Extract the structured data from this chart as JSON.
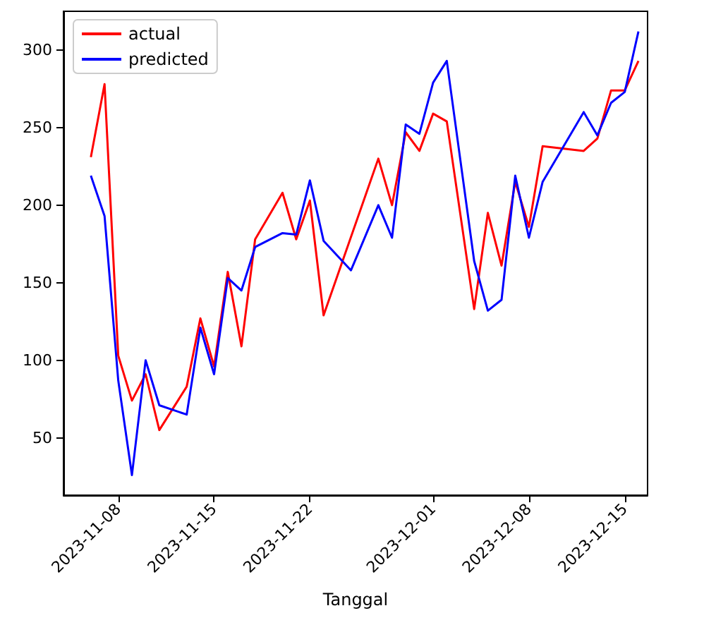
{
  "chart_data": {
    "type": "line",
    "xlabel": "Tanggal",
    "legend": "top left",
    "grid": false,
    "marker": "none",
    "line_style": "solid",
    "xlim": [
      "2023-11-04",
      "2023-12-16T16:00"
    ],
    "xticks": [
      "2023-11-08",
      "2023-11-15",
      "2023-11-22",
      "2023-12-01",
      "2023-12-08",
      "2023-12-15"
    ],
    "ylim": [
      13,
      325
    ],
    "yticks": [
      50,
      100,
      150,
      200,
      250,
      300
    ],
    "series": [
      {
        "name": "actual",
        "color": "#ff0000",
        "x": [
          "2023-11-06",
          "2023-11-07",
          "2023-11-08",
          "2023-11-09",
          "2023-11-10",
          "2023-11-11",
          "2023-11-13",
          "2023-11-14",
          "2023-11-15",
          "2023-11-16",
          "2023-11-17",
          "2023-11-18",
          "2023-11-20",
          "2023-11-21",
          "2023-11-22",
          "2023-11-23",
          "2023-11-27",
          "2023-11-28",
          "2023-11-29",
          "2023-11-30",
          "2023-12-01",
          "2023-12-02",
          "2023-12-04",
          "2023-12-05",
          "2023-12-06",
          "2023-12-07",
          "2023-12-08",
          "2023-12-09",
          "2023-12-12",
          "2023-12-13",
          "2023-12-14",
          "2023-12-15",
          "2023-12-16"
        ],
        "values": [
          231,
          278,
          103,
          74,
          91,
          55,
          83,
          127,
          96,
          157,
          109,
          178,
          208,
          178,
          203,
          129,
          230,
          200,
          247,
          235,
          259,
          254,
          133,
          195,
          161,
          215,
          186,
          238,
          235,
          243,
          274,
          274,
          293
        ]
      },
      {
        "name": "predicted",
        "color": "#0000ff",
        "x": [
          "2023-11-06",
          "2023-11-07",
          "2023-11-08",
          "2023-11-09",
          "2023-11-10",
          "2023-11-11",
          "2023-11-13",
          "2023-11-14",
          "2023-11-15",
          "2023-11-16",
          "2023-11-17",
          "2023-11-18",
          "2023-11-20",
          "2023-11-21",
          "2023-11-22",
          "2023-11-23",
          "2023-11-25",
          "2023-11-27",
          "2023-11-28",
          "2023-11-29",
          "2023-11-30",
          "2023-12-01",
          "2023-12-02",
          "2023-12-04",
          "2023-12-05",
          "2023-12-06",
          "2023-12-07",
          "2023-12-08",
          "2023-12-09",
          "2023-12-12",
          "2023-12-13",
          "2023-12-14",
          "2023-12-15",
          "2023-12-16"
        ],
        "values": [
          219,
          193,
          87,
          26,
          100,
          71,
          65,
          121,
          91,
          153,
          145,
          173,
          182,
          181,
          216,
          177,
          158,
          200,
          179,
          252,
          246,
          279,
          293,
          164,
          132,
          139,
          219,
          179,
          215,
          260,
          245,
          266,
          273,
          312
        ]
      }
    ]
  }
}
